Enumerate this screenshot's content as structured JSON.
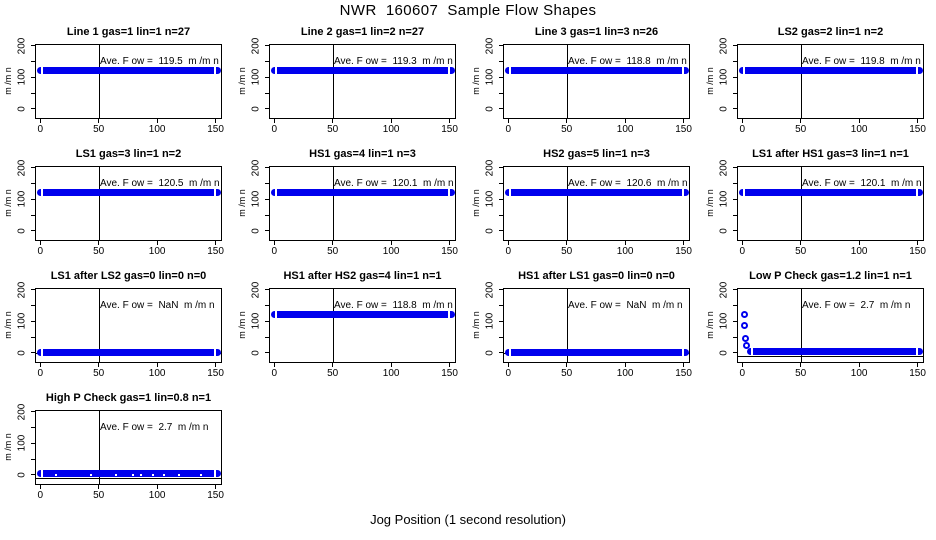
{
  "chart_data": {
    "type": "scatter",
    "title": "NWR  160607  Sample Flow Shapes",
    "xlabel": "Jog Position (1 second resolution)",
    "ylabel": "m /m n",
    "point_color": "#0000ee",
    "layout_hint": {
      "rows": 4,
      "cols": 4,
      "grid": false,
      "panel_vline_x": 50
    },
    "axes": {
      "x_ticks": [
        0,
        50,
        100,
        150
      ],
      "y_ticks": [
        0,
        100,
        200
      ],
      "y_minor_ticks": [
        50,
        150
      ],
      "xlim": [
        -4.5,
        155.5
      ],
      "ylim": [
        -32,
        205
      ]
    },
    "x_resolution_seconds": 1,
    "panels": [
      {
        "title": "Line 1 gas=1 lin=1 n=27",
        "ave_flow": 119.5,
        "annotation": "Ave. F ow =  119.5  m /m n",
        "flat_y": 120,
        "flat_x_range": [
          0,
          152
        ]
      },
      {
        "title": "Line 2 gas=1 lin=2 n=27",
        "ave_flow": 119.3,
        "annotation": "Ave. F ow =  119.3  m /m n",
        "flat_y": 120,
        "flat_x_range": [
          0,
          152
        ]
      },
      {
        "title": "Line 3 gas=1 lin=3 n=26",
        "ave_flow": 118.8,
        "annotation": "Ave. F ow =  118.8  m /m n",
        "flat_y": 120,
        "flat_x_range": [
          0,
          152
        ]
      },
      {
        "title": "LS2 gas=2 lin=1 n=2",
        "ave_flow": 119.8,
        "annotation": "Ave. F ow =  119.8  m /m n",
        "flat_y": 120,
        "flat_x_range": [
          0,
          152
        ]
      },
      {
        "title": "LS1 gas=3 lin=1 n=2",
        "ave_flow": 120.5,
        "annotation": "Ave. F ow =  120.5  m /m n",
        "flat_y": 120,
        "flat_x_range": [
          0,
          152
        ]
      },
      {
        "title": "HS1 gas=4 lin=1 n=3",
        "ave_flow": 120.1,
        "annotation": "Ave. F ow =  120.1  m /m n",
        "flat_y": 120,
        "flat_x_range": [
          0,
          152
        ]
      },
      {
        "title": "HS2 gas=5 lin=1 n=3",
        "ave_flow": 120.6,
        "annotation": "Ave. F ow =  120.6  m /m n",
        "flat_y": 120,
        "flat_x_range": [
          0,
          152
        ]
      },
      {
        "title": "LS1 after HS1 gas=3 lin=1 n=1",
        "ave_flow": 120.1,
        "annotation": "Ave. F ow =  120.1  m /m n",
        "flat_y": 120,
        "flat_x_range": [
          0,
          152
        ]
      },
      {
        "title": "LS1 after LS2 gas=0 lin=0 n=0",
        "ave_flow": "NaN",
        "annotation": "Ave. F ow =  NaN  m /m n",
        "flat_y": 0,
        "flat_x_range": [
          0,
          152
        ],
        "zero_line": true
      },
      {
        "title": "HS1 after HS2 gas=4 lin=1 n=1",
        "ave_flow": 118.8,
        "annotation": "Ave. F ow =  118.8  m /m n",
        "flat_y": 120,
        "flat_x_range": [
          0,
          152
        ]
      },
      {
        "title": "HS1 after LS1 gas=0 lin=0 n=0",
        "ave_flow": "NaN",
        "annotation": "Ave. F ow =  NaN  m /m n",
        "flat_y": 0,
        "flat_x_range": [
          0,
          152
        ],
        "zero_line": true
      },
      {
        "title": "Low P Check gas=1.2 lin=1 n=1",
        "ave_flow": 2.7,
        "annotation": "Ave. F ow =  2.7  m /m n",
        "flat_y": 3,
        "flat_x_range": [
          4,
          152
        ],
        "zero_line": true,
        "decay_points": [
          [
            2,
            120
          ],
          [
            2,
            86
          ],
          [
            3,
            45
          ],
          [
            3.5,
            22
          ]
        ]
      },
      {
        "title": "High P Check gas=1 lin=0.8 n=1",
        "ave_flow": 2.7,
        "annotation": "Ave. F ow =  2.7  m /m n",
        "flat_y": 3,
        "flat_x_range": [
          0,
          152
        ],
        "zero_line": true,
        "speckled": true
      }
    ]
  }
}
